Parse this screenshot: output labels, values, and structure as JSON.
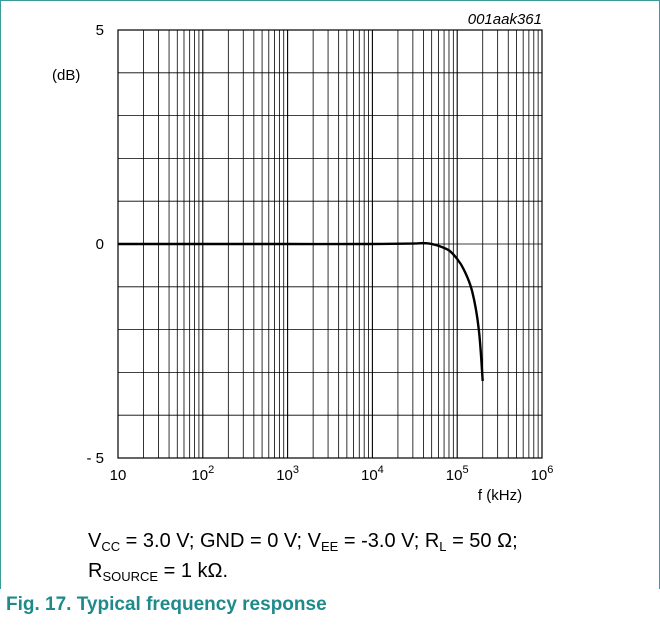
{
  "chart_data": {
    "type": "line",
    "id_label": "001aak361",
    "title": "",
    "xlabel": "f (kHz)",
    "ylabel": "(dB)",
    "x_scale": "log",
    "xlim": [
      10,
      1000000
    ],
    "ylim": [
      -5,
      5
    ],
    "x_ticks": [
      {
        "base": "10",
        "exp": ""
      },
      {
        "base": "10",
        "exp": "2"
      },
      {
        "base": "10",
        "exp": "3"
      },
      {
        "base": "10",
        "exp": "4"
      },
      {
        "base": "10",
        "exp": "5"
      },
      {
        "base": "10",
        "exp": "6"
      }
    ],
    "y_ticks": [
      "5",
      "0",
      "- 5"
    ],
    "grid": true,
    "series": [
      {
        "x": [
          10,
          100,
          1000,
          10000,
          30000,
          40000,
          50000,
          60000,
          80000,
          100000,
          120000,
          150000,
          180000,
          200000
        ],
        "y": [
          0,
          0,
          0,
          0,
          0.01,
          0.02,
          0.0,
          -0.04,
          -0.15,
          -0.35,
          -0.6,
          -1.1,
          -2.0,
          -3.2
        ]
      }
    ]
  },
  "caption": {
    "line1": [
      {
        "t": "V"
      },
      {
        "sub": "CC"
      },
      {
        "t": " = 3.0 V; GND = 0 V; V"
      },
      {
        "sub": "EE"
      },
      {
        "t": " = -3.0 V; R"
      },
      {
        "sub": "L"
      },
      {
        "t": " = 50 Ω;"
      }
    ],
    "line2": [
      {
        "t": "R"
      },
      {
        "sub": "SOURCE"
      },
      {
        "t": " = 1 kΩ."
      }
    ]
  },
  "figure_title": "Fig. 17.  Typical frequency response",
  "colors": {
    "accent": "#1f8a8a",
    "border": "#3a9a9a",
    "grid": "#000000",
    "curve": "#000000"
  }
}
